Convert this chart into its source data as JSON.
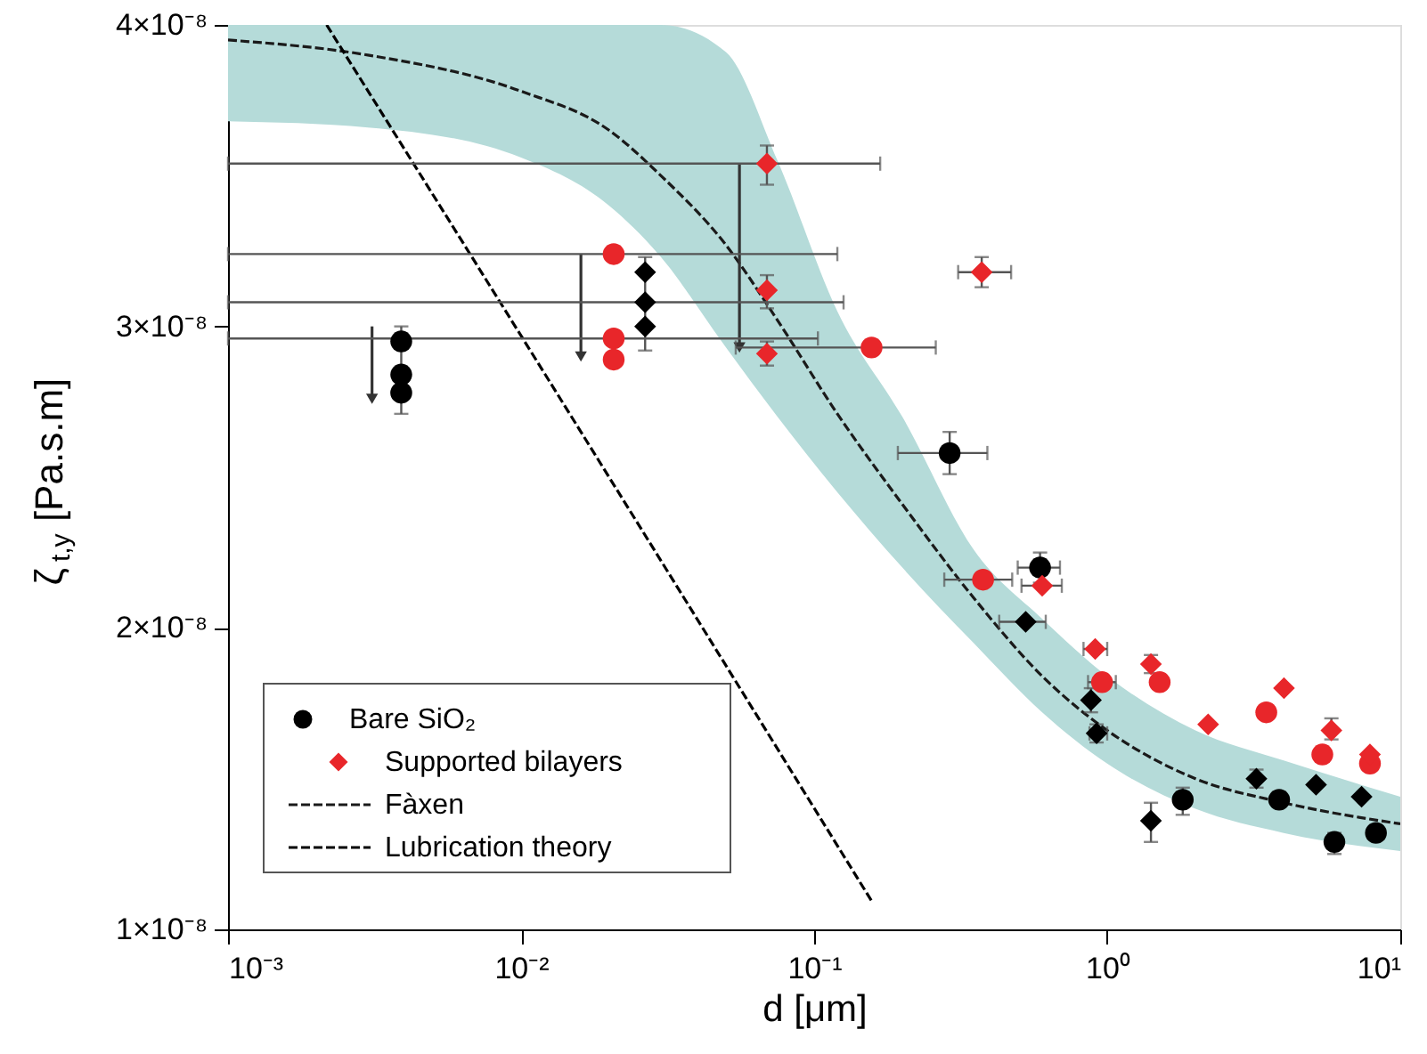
{
  "chart_data": {
    "type": "scatter",
    "xlabel": "d [μm]",
    "ylabel": "ζ$_{t,y}$ [Pa.s.m]",
    "log": "x",
    "legend": "bottom left",
    "xlim": [
      0.001,
      10
    ],
    "ylim": [
      1e-08,
      4e-08
    ],
    "xticks": [
      {
        "value": 0.001,
        "label": "10⁻³"
      },
      {
        "value": 0.01,
        "label": "10⁻²"
      },
      {
        "value": 0.1,
        "label": "10⁻¹"
      },
      {
        "value": 1,
        "label": "10⁰"
      },
      {
        "value": 10,
        "label": "10¹"
      }
    ],
    "yticks": [
      {
        "value": 1e-08,
        "label": "1×10⁻⁸"
      },
      {
        "value": 2e-08,
        "label": "2×10⁻⁸"
      },
      {
        "value": 3e-08,
        "label": "3×10⁻⁸"
      },
      {
        "value": 4e-08,
        "label": "4×10⁻⁸"
      }
    ],
    "series": [
      {
        "name": "Bare SiO₂",
        "color": "#000000",
        "marker": "circle",
        "x": [
          0.0039,
          0.0039,
          0.0039,
          0.29,
          0.59,
          1.81,
          3.86,
          5.96,
          8.26
        ],
        "values": [
          2.95e-08,
          2.84e-08,
          2.78e-08,
          2.58e-08,
          2.2e-08,
          1.43e-08,
          1.43e-08,
          1.29e-08,
          1.32e-08
        ],
        "errors": [
          null,
          [
            2.71e-08,
            3e-08
          ],
          null,
          [
            2.51e-08,
            2.65e-08
          ],
          [
            2.15e-08,
            2.25e-08
          ],
          [
            1.38e-08,
            1.47e-08
          ],
          null,
          [
            1.25e-08,
            1.32e-08
          ],
          null
        ],
        "xerrors": [
          null,
          null,
          null,
          [
            0.193,
            0.39
          ],
          [
            0.495,
            0.69
          ],
          null,
          null,
          null,
          null
        ]
      },
      {
        "color": "#000000",
        "marker": "diamond",
        "x": [
          0.0265,
          0.0265,
          0.0265,
          0.527,
          0.88,
          0.92,
          1.41,
          3.23,
          5.16,
          7.38
        ],
        "values": [
          3.18e-08,
          3.08e-08,
          3e-08,
          2.02e-08,
          1.76e-08,
          1.65e-08,
          1.36e-08,
          1.5e-08,
          1.48e-08,
          1.44e-08
        ],
        "errors": [
          null,
          [
            2.92e-08,
            3.23e-08
          ],
          null,
          null,
          [
            1.72e-08,
            1.8e-08
          ],
          [
            1.62e-08,
            1.68e-08
          ],
          [
            1.29e-08,
            1.42e-08
          ],
          [
            1.47e-08,
            1.53e-08
          ],
          null,
          null
        ],
        "xerrors": [
          null,
          [
            0.001,
            0.126
          ],
          null,
          [
            0.428,
            0.617
          ],
          null,
          [
            0.87,
            1.0
          ],
          null,
          null,
          null,
          null
        ]
      },
      {
        "color": "#e8262a",
        "marker": "circle",
        "x": [
          0.0207,
          0.0207,
          0.0207,
          0.157,
          0.377,
          0.96,
          1.51,
          3.49,
          5.42,
          7.88
        ],
        "values": [
          3.24e-08,
          2.96e-08,
          2.89e-08,
          2.93e-08,
          2.16e-08,
          1.82e-08,
          1.82e-08,
          1.72e-08,
          1.58e-08,
          1.55e-08
        ],
        "xerrors": [
          [
            0.001,
            0.12
          ],
          [
            0.001,
            0.103
          ],
          null,
          [
            0.054,
            0.26
          ],
          [
            0.278,
            0.474
          ],
          [
            0.86,
            1.07
          ],
          null,
          null,
          null,
          null
        ]
      },
      {
        "name": "Supported bilayers",
        "color": "#e8262a",
        "marker": "diamond",
        "x": [
          0.069,
          0.069,
          0.069,
          0.373,
          0.6,
          0.91,
          1.41,
          2.21,
          4.01,
          5.82,
          7.88
        ],
        "values": [
          3.54e-08,
          3.12e-08,
          2.91e-08,
          3.18e-08,
          2.14e-08,
          1.93e-08,
          1.88e-08,
          1.68e-08,
          1.8e-08,
          1.66e-08,
          1.58e-08
        ],
        "errors": [
          [
            3.47e-08,
            3.6e-08
          ],
          [
            3.06e-08,
            3.17e-08
          ],
          [
            2.87e-08,
            2.95e-08
          ],
          [
            3.13e-08,
            3.23e-08
          ],
          null,
          null,
          [
            1.85e-08,
            1.91e-08
          ],
          null,
          null,
          [
            1.63e-08,
            1.7e-08
          ],
          null
        ],
        "xerrors": [
          [
            0.001,
            0.168
          ],
          null,
          null,
          [
            0.31,
            0.47
          ],
          [
            0.51,
            0.7
          ],
          [
            0.83,
            1.0
          ],
          null,
          null,
          null,
          null,
          null
        ]
      },
      {
        "name": "Fàxen",
        "type": "line",
        "color": "#1a1a1a",
        "line_style": "dashed",
        "marker": "none",
        "x": [
          0.001,
          0.003,
          0.01,
          0.02,
          0.03,
          0.05,
          0.075,
          0.12,
          0.2,
          0.35,
          0.6,
          1,
          2,
          4,
          10
        ],
        "values": [
          3.95e-08,
          3.9e-08,
          3.78e-08,
          3.65e-08,
          3.5e-08,
          3.27e-08,
          3.02e-08,
          2.71e-08,
          2.41e-08,
          2.1e-08,
          1.84e-08,
          1.66e-08,
          1.5e-08,
          1.42e-08,
          1.35e-08
        ],
        "lower": [
          3.68e-08,
          3.66e-08,
          3.56e-08,
          3.4e-08,
          3.23e-08,
          2.93e-08,
          2.7e-08,
          2.45e-08,
          2.2e-08,
          1.95e-08,
          1.72e-08,
          1.55e-08,
          1.4e-08,
          1.32e-08,
          1.26e-08
        ],
        "upper": [
          4e-08,
          4e-08,
          4e-08,
          4e-08,
          4e-08,
          3.91e-08,
          3.55e-08,
          3.05e-08,
          2.7e-08,
          2.26e-08,
          2.03e-08,
          1.84e-08,
          1.66e-08,
          1.56e-08,
          1.44e-08
        ]
      },
      {
        "name": "Lubrication theory",
        "type": "line",
        "color": "#000000",
        "line_style": "dashed",
        "marker": "none",
        "x": [
          0.00217,
          0.0114,
          0.158
        ],
        "values": [
          4e-08,
          2.88e-08,
          1.09e-08
        ]
      },
      {
        "type": "line",
        "color": "#333333",
        "line_style": "solid",
        "marker": "triangle",
        "x": [
          0.0031,
          0.0031
        ],
        "values": [
          3e-08,
          2.76e-08
        ]
      },
      {
        "type": "line",
        "color": "#333333",
        "line_style": "solid",
        "marker": "triangle",
        "x": [
          0.016,
          0.016
        ],
        "values": [
          3.24e-08,
          2.9e-08
        ]
      },
      {
        "type": "line",
        "color": "#333333",
        "line_style": "solid",
        "marker": "triangle",
        "x": [
          0.0556,
          0.0556
        ],
        "values": [
          3.54e-08,
          2.93e-08
        ]
      }
    ]
  }
}
